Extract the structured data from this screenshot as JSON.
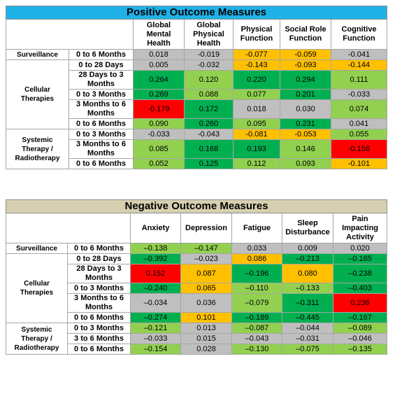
{
  "tables": [
    {
      "title": "Positive Outcome Measures",
      "title_color": "#1fb2e8",
      "columns": [
        "Global Mental Health",
        "Global Physical Health",
        "Physical Function",
        "Social Role Function",
        "Cognitive Function"
      ],
      "groups": [
        {
          "label": "Surveillance",
          "rows": [
            {
              "period": "0 to 6 Months",
              "values": [
                "0.018",
                "-0.019",
                "-0.077",
                "-0.059",
                "-0.041"
              ],
              "colors": [
                "#bfbfbf",
                "#bfbfbf",
                "#ffc000",
                "#ffc000",
                "#bfbfbf"
              ]
            }
          ]
        },
        {
          "label": "Cellular Therapies",
          "rows": [
            {
              "period": "0 to 28 Days",
              "values": [
                "0.005",
                "-0.032",
                "-0.143",
                "-0.093",
                "-0.144"
              ],
              "colors": [
                "#bfbfbf",
                "#bfbfbf",
                "#ffc000",
                "#ffc000",
                "#ffc000"
              ]
            },
            {
              "period": "28 Days to 3 Months",
              "values": [
                "0.264",
                "0.120",
                "0.220",
                "0.294",
                "0.111"
              ],
              "colors": [
                "#00b050",
                "#92d050",
                "#00b050",
                "#00b050",
                "#92d050"
              ]
            },
            {
              "period": "0 to 3 Months",
              "values": [
                "0.269",
                "0.088",
                "0.077",
                "0.201",
                "-0.033"
              ],
              "colors": [
                "#00b050",
                "#92d050",
                "#92d050",
                "#00b050",
                "#bfbfbf"
              ]
            },
            {
              "period": "3 Months to 6 Months",
              "values": [
                "-0.179",
                "0.172",
                "0.018",
                "0.030",
                "0.074"
              ],
              "colors": [
                "#ff0000",
                "#00b050",
                "#bfbfbf",
                "#bfbfbf",
                "#92d050"
              ]
            },
            {
              "period": "0 to 6 Months",
              "values": [
                "0.090",
                "0.260",
                "0.095",
                "0.231",
                "0.041"
              ],
              "colors": [
                "#92d050",
                "#00b050",
                "#92d050",
                "#00b050",
                "#bfbfbf"
              ]
            }
          ]
        },
        {
          "label": "Systemic Therapy / Radiotherapy",
          "rows": [
            {
              "period": "0 to 3 Months",
              "values": [
                "-0.033",
                "-0.043",
                "-0.081",
                "-0.053",
                "0.055"
              ],
              "colors": [
                "#bfbfbf",
                "#bfbfbf",
                "#ffc000",
                "#ffc000",
                "#92d050"
              ]
            },
            {
              "period": "3 Months to 6 Months",
              "values": [
                "0.085",
                "0.168",
                "0.193",
                "0.146",
                "-0.156"
              ],
              "colors": [
                "#92d050",
                "#00b050",
                "#00b050",
                "#92d050",
                "#ff0000"
              ]
            },
            {
              "period": "0 to 6 Months",
              "values": [
                "0.052",
                "0.125",
                "0.112",
                "0.093",
                "-0.101"
              ],
              "colors": [
                "#92d050",
                "#00b050",
                "#92d050",
                "#92d050",
                "#ffc000"
              ]
            }
          ]
        }
      ]
    },
    {
      "title": "Negative Outcome Measures",
      "title_color": "#d6d0b0",
      "columns": [
        "Anxiety",
        "Depression",
        "Fatigue",
        "Sleep Disturbance",
        "Pain Impacting Activity"
      ],
      "groups": [
        {
          "label": "Surveillance",
          "rows": [
            {
              "period": "0 to 6 Months",
              "values": [
                "–0.138",
                "–0.147",
                "0.033",
                "0.009",
                "0.020"
              ],
              "colors": [
                "#92d050",
                "#92d050",
                "#bfbfbf",
                "#bfbfbf",
                "#bfbfbf"
              ]
            }
          ]
        },
        {
          "label": "Cellular Therapies",
          "rows": [
            {
              "period": "0 to 28 Days",
              "values": [
                "–0.392",
                "–0.023",
                "0.086",
                "–0.213",
                "–0.165"
              ],
              "colors": [
                "#00b050",
                "#bfbfbf",
                "#ffc000",
                "#00b050",
                "#00b050"
              ]
            },
            {
              "period": "28 Days to 3 Months",
              "values": [
                "0.152",
                "0.087",
                "–0.196",
                "0.080",
                "–0.238"
              ],
              "colors": [
                "#ff0000",
                "#ffc000",
                "#00b050",
                "#ffc000",
                "#00b050"
              ]
            },
            {
              "period": "0 to 3 Months",
              "values": [
                "–0.240",
                "0.065",
                "–0.110",
                "–0.133",
                "–0.403"
              ],
              "colors": [
                "#00b050",
                "#ffc000",
                "#92d050",
                "#92d050",
                "#00b050"
              ]
            },
            {
              "period": "3 Months to 6 Months",
              "values": [
                "–0.034",
                "0.036",
                "–0.079",
                "–0.311",
                "0.236"
              ],
              "colors": [
                "#bfbfbf",
                "#bfbfbf",
                "#92d050",
                "#00b050",
                "#ff0000"
              ]
            },
            {
              "period": "0 to 6 Months",
              "values": [
                "–0.274",
                "0.101",
                "–0.189",
                "–0.445",
                "–0.167"
              ],
              "colors": [
                "#00b050",
                "#ffc000",
                "#00b050",
                "#00b050",
                "#00b050"
              ]
            }
          ]
        },
        {
          "label": "Systemic Therapy / Radiotherapy",
          "rows": [
            {
              "period": "0 to 3 Months",
              "values": [
                "–0.121",
                "0.013",
                "–0.087",
                "–0.044",
                "–0.089"
              ],
              "colors": [
                "#92d050",
                "#bfbfbf",
                "#92d050",
                "#bfbfbf",
                "#92d050"
              ]
            },
            {
              "period": "3 to 6 Months",
              "values": [
                "–0.033",
                "0.015",
                "–0.043",
                "–0.031",
                "–0.046"
              ],
              "colors": [
                "#bfbfbf",
                "#bfbfbf",
                "#bfbfbf",
                "#bfbfbf",
                "#bfbfbf"
              ]
            },
            {
              "period": "0 to 6 Months",
              "values": [
                "–0.154",
                "0.028",
                "–0.130",
                "–0.075",
                "–0.135"
              ],
              "colors": [
                "#92d050",
                "#bfbfbf",
                "#92d050",
                "#92d050",
                "#92d050"
              ]
            }
          ]
        }
      ]
    }
  ]
}
